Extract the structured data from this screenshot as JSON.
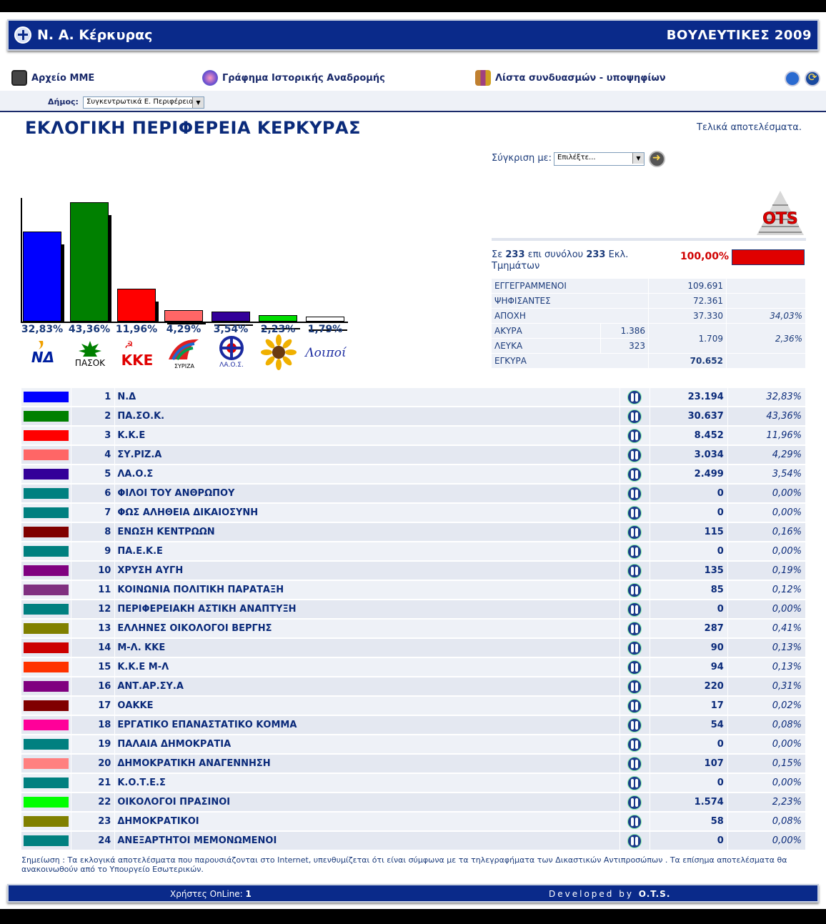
{
  "header": {
    "title": "Ν. Α. Κέρκυρας",
    "election": "ΒΟΥΛΕΥΤΙΚΕΣ 2009"
  },
  "nav": {
    "archive": "Αρχείο ΜΜΕ",
    "history_graph": "Γράφημα Ιστορικής Αναδρομής",
    "candidates_list": "Λίστα συνδυασμών - υποψηφίων"
  },
  "filter": {
    "dimos_label": "Δήμος:",
    "dimos_value": "Συγκεντρωτικά Ε. Περιφέρειας"
  },
  "page_title": "ΕΚΛΟΓΙΚΗ ΠΕΡΙΦΕΡΕΙΑ ΚΕΡΚΥΡΑΣ",
  "status": "Τελικά αποτελέσματα.",
  "compare": {
    "label": "Σύγκριση με:",
    "value": "Επιλέξτε..."
  },
  "sections": {
    "prefix": "Σε",
    "counted": "233",
    "middle": "επι συνόλου",
    "total": "233",
    "suffix": "Εκλ. Τμημάτων",
    "pct": "100,00%",
    "progress": 1.0
  },
  "stats": {
    "registered": {
      "label": "ΕΓΓΕΓΡΑΜΜΕΝΟΙ",
      "value": "109.691"
    },
    "voted": {
      "label": "ΨΗΦΙΣΑΝΤΕΣ",
      "value": "72.361"
    },
    "abstention": {
      "label": "ΑΠΟΧΗ",
      "value": "37.330",
      "pct": "34,03%"
    },
    "invalid": {
      "label": "ΑΚΥΡΑ",
      "value": "1.386"
    },
    "blank": {
      "label": "ΛΕΥΚΑ",
      "value": "323"
    },
    "invalid_blank_total": "1.709",
    "invalid_blank_pct": "2,36%",
    "valid": {
      "label": "ΕΓΚΥΡΑ",
      "value": "70.652"
    }
  },
  "chart_data": {
    "type": "bar",
    "categories": [
      "Ν.Δ",
      "ΠΑ.ΣΟ.Κ.",
      "Κ.Κ.Ε",
      "ΣΥ.ΡΙΖ.Α",
      "ΛΑ.Ο.Σ",
      "ΟΙΚΟΛΟΓΟΙ ΠΡΑΣΙΝΟΙ",
      "Λοιποί"
    ],
    "values": [
      32.83,
      43.36,
      11.96,
      4.29,
      3.54,
      2.23,
      1.79
    ],
    "labels": [
      "32,83%",
      "43,36%",
      "11,96%",
      "4,29%",
      "3,54%",
      "2,23%",
      "1,79%"
    ],
    "colors": [
      "#0000ff",
      "#008000",
      "#ff0000",
      "#ff6666",
      "#330099",
      "#00dd00",
      "#ffffff"
    ],
    "ylim": [
      0,
      45
    ]
  },
  "logos": {
    "nd": "ΝΔ",
    "pasok": "ΠΑΣΟΚ",
    "kke": "ΚΚΕ",
    "syriza": "ΣΥΡΙΖΑ",
    "laos": "ΛΑ.Ο.Σ.",
    "others": "Λοιποί",
    "ots": "OTS"
  },
  "results": [
    {
      "rank": "1",
      "name": "Ν.Δ",
      "votes": "23.194",
      "pct": "32,83%",
      "color": "#0000ff"
    },
    {
      "rank": "2",
      "name": "ΠΑ.ΣΟ.Κ.",
      "votes": "30.637",
      "pct": "43,36%",
      "color": "#008000"
    },
    {
      "rank": "3",
      "name": "Κ.Κ.Ε",
      "votes": "8.452",
      "pct": "11,96%",
      "color": "#ff0000"
    },
    {
      "rank": "4",
      "name": "ΣΥ.ΡΙΖ.Α",
      "votes": "3.034",
      "pct": "4,29%",
      "color": "#ff6666"
    },
    {
      "rank": "5",
      "name": "ΛΑ.Ο.Σ",
      "votes": "2.499",
      "pct": "3,54%",
      "color": "#330099"
    },
    {
      "rank": "6",
      "name": "ΦΙΛΟΙ ΤΟΥ ΑΝΘΡΩΠΟΥ",
      "votes": "0",
      "pct": "0,00%",
      "color": "#008080"
    },
    {
      "rank": "7",
      "name": "ΦΩΣ ΑΛΗΘΕΙΑ ΔΙΚΑΙΟΣΥΝΗ",
      "votes": "0",
      "pct": "0,00%",
      "color": "#008080"
    },
    {
      "rank": "8",
      "name": "ΕΝΩΣΗ ΚΕΝΤΡΩΩΝ",
      "votes": "115",
      "pct": "0,16%",
      "color": "#800000"
    },
    {
      "rank": "9",
      "name": "ΠΑ.Ε.Κ.Ε",
      "votes": "0",
      "pct": "0,00%",
      "color": "#008080"
    },
    {
      "rank": "10",
      "name": "ΧΡΥΣΗ ΑΥΓΗ",
      "votes": "135",
      "pct": "0,19%",
      "color": "#800080"
    },
    {
      "rank": "11",
      "name": "ΚΟΙΝΩΝΙΑ ΠΟΛΙΤΙΚΗ ΠΑΡΑΤΑΞΗ",
      "votes": "85",
      "pct": "0,12%",
      "color": "#803080"
    },
    {
      "rank": "12",
      "name": "ΠΕΡΙΦΕΡΕΙΑΚΗ ΑΣΤΙΚΗ ΑΝΑΠΤΥΞΗ",
      "votes": "0",
      "pct": "0,00%",
      "color": "#008080"
    },
    {
      "rank": "13",
      "name": "ΕΛΛΗΝΕΣ ΟΙΚΟΛΟΓΟΙ ΒΕΡΓΗΣ",
      "votes": "287",
      "pct": "0,41%",
      "color": "#808000"
    },
    {
      "rank": "14",
      "name": "Μ-Λ. ΚΚΕ",
      "votes": "90",
      "pct": "0,13%",
      "color": "#cc0000"
    },
    {
      "rank": "15",
      "name": "Κ.Κ.Ε Μ-Λ",
      "votes": "94",
      "pct": "0,13%",
      "color": "#ff3300"
    },
    {
      "rank": "16",
      "name": "ΑΝΤ.ΑΡ.ΣΥ.Α",
      "votes": "220",
      "pct": "0,31%",
      "color": "#800080"
    },
    {
      "rank": "17",
      "name": "ΟΑΚΚΕ",
      "votes": "17",
      "pct": "0,02%",
      "color": "#800000"
    },
    {
      "rank": "18",
      "name": "ΕΡΓΑΤΙΚΟ ΕΠΑΝΑΣΤΑΤΙΚΟ ΚΟΜΜΑ",
      "votes": "54",
      "pct": "0,08%",
      "color": "#ff0099"
    },
    {
      "rank": "19",
      "name": "ΠΑΛΑΙΑ ΔΗΜΟΚΡΑΤΙΑ",
      "votes": "0",
      "pct": "0,00%",
      "color": "#008080"
    },
    {
      "rank": "20",
      "name": "ΔΗΜΟΚΡΑΤΙΚΗ ΑΝΑΓΕΝΝΗΣΗ",
      "votes": "107",
      "pct": "0,15%",
      "color": "#ff8080"
    },
    {
      "rank": "21",
      "name": "Κ.Ο.Τ.Ε.Σ",
      "votes": "0",
      "pct": "0,00%",
      "color": "#008080"
    },
    {
      "rank": "22",
      "name": "ΟΙΚΟΛΟΓΟΙ ΠΡΑΣΙΝΟΙ",
      "votes": "1.574",
      "pct": "2,23%",
      "color": "#00ff00"
    },
    {
      "rank": "23",
      "name": "ΔΗΜΟΚΡΑΤΙΚΟΙ",
      "votes": "58",
      "pct": "0,08%",
      "color": "#808000"
    },
    {
      "rank": "24",
      "name": "ΑΝΕΞΑΡΤΗΤΟΙ ΜΕΜΟΝΩΜΕΝΟΙ",
      "votes": "0",
      "pct": "0,00%",
      "color": "#008080"
    }
  ],
  "note": "Σημείωση : Τα εκλογικά αποτελέσματα που παρουσιάζονται στο Internet, υπενθυμίζεται ότι είναι σύμφωνα με τα τηλεγραφήματα των Δικαστικών Αντιπροσώπων . Τα επίσημα αποτελέσματα θα ανακοινωθούν από το Υπουργείο Εσωτερικών.",
  "footer": {
    "online_label": "Χρήστες OnLine:",
    "online_count": "1",
    "dev_label": "Developed by",
    "dev_name": "O.T.S."
  }
}
